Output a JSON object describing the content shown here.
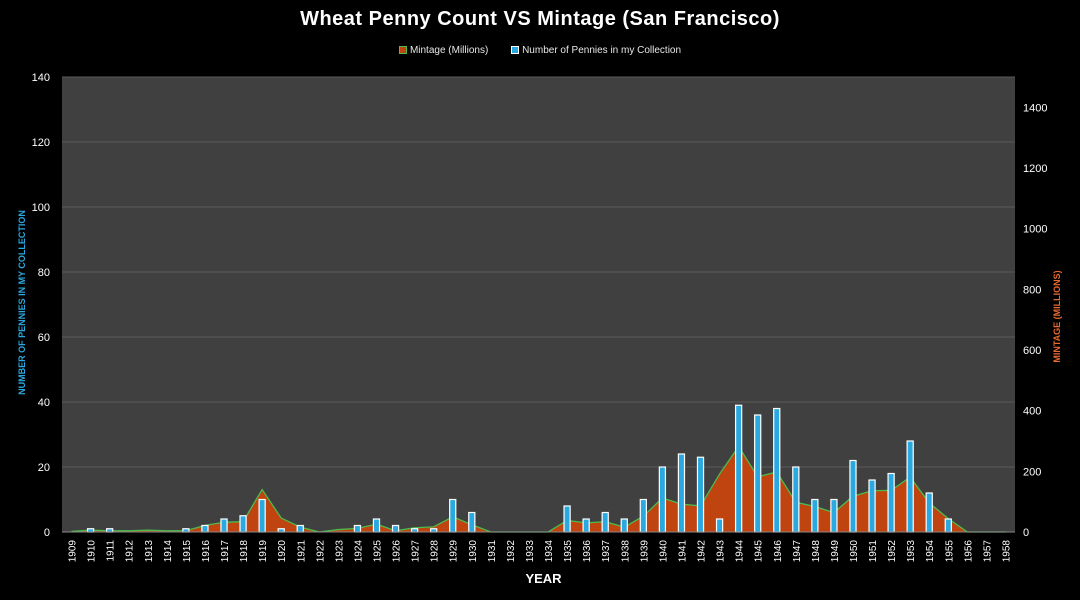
{
  "chart_data": {
    "type": "bar",
    "title": "Wheat Penny Count VS Mintage (San Francisco)",
    "xlabel": "YEAR",
    "ylabel": "NUMBER OF PENNIES IN MY COLLECTION",
    "y2label": "MINTAGE (MILLIONS)",
    "ylim": [
      0,
      140
    ],
    "y2lim": [
      0,
      1500
    ],
    "yticks": [
      0,
      20,
      40,
      60,
      80,
      100,
      120,
      140
    ],
    "y2ticks": [
      0,
      200,
      400,
      600,
      800,
      1000,
      1200,
      1400
    ],
    "grid": true,
    "legend_position": "top",
    "categories": [
      "1909",
      "1910",
      "1911",
      "1912",
      "1913",
      "1914",
      "1915",
      "1916",
      "1917",
      "1918",
      "1919",
      "1920",
      "1921",
      "1922",
      "1923",
      "1924",
      "1925",
      "1926",
      "1927",
      "1928",
      "1929",
      "1930",
      "1931",
      "1932",
      "1933",
      "1934",
      "1935",
      "1936",
      "1937",
      "1938",
      "1939",
      "1940",
      "1941",
      "1942",
      "1943",
      "1944",
      "1945",
      "1946",
      "1947",
      "1948",
      "1949",
      "1950",
      "1951",
      "1952",
      "1953",
      "1954",
      "1955",
      "1956",
      "1957",
      "1958"
    ],
    "series": [
      {
        "name": "Mintage (Millions)",
        "type": "area",
        "axis": "secondary",
        "color": "#c0440f",
        "line_color": "#4cbb4c",
        "values": [
          2,
          6,
          4,
          4,
          6,
          4,
          4,
          22,
          32,
          34,
          140,
          46,
          16,
          0,
          8,
          12,
          26,
          4,
          14,
          17,
          50,
          24,
          0,
          0,
          0,
          0,
          38,
          30,
          34,
          16,
          52,
          112,
          92,
          86,
          191,
          282,
          182,
          198,
          98,
          84,
          64,
          118,
          136,
          137,
          181,
          96,
          44,
          0,
          0,
          0
        ]
      },
      {
        "name": "Number of Pennies in my Collection",
        "type": "bar",
        "axis": "primary",
        "color": "#2aa9e0",
        "values": [
          0,
          1,
          1,
          0,
          0,
          0,
          1,
          2,
          4,
          5,
          10,
          1,
          2,
          0,
          0,
          2,
          4,
          2,
          1,
          1,
          10,
          6,
          0,
          0,
          0,
          0,
          8,
          4,
          6,
          4,
          10,
          20,
          24,
          23,
          4,
          39,
          36,
          38,
          20,
          10,
          10,
          22,
          16,
          18,
          28,
          12,
          4,
          0,
          0,
          0
        ]
      }
    ]
  },
  "colors": {
    "plot_background": "#404040",
    "gridline": "#5a5a5a",
    "primary_axis_label": "#2aa9e0",
    "secondary_axis_label": "#e8692d"
  }
}
